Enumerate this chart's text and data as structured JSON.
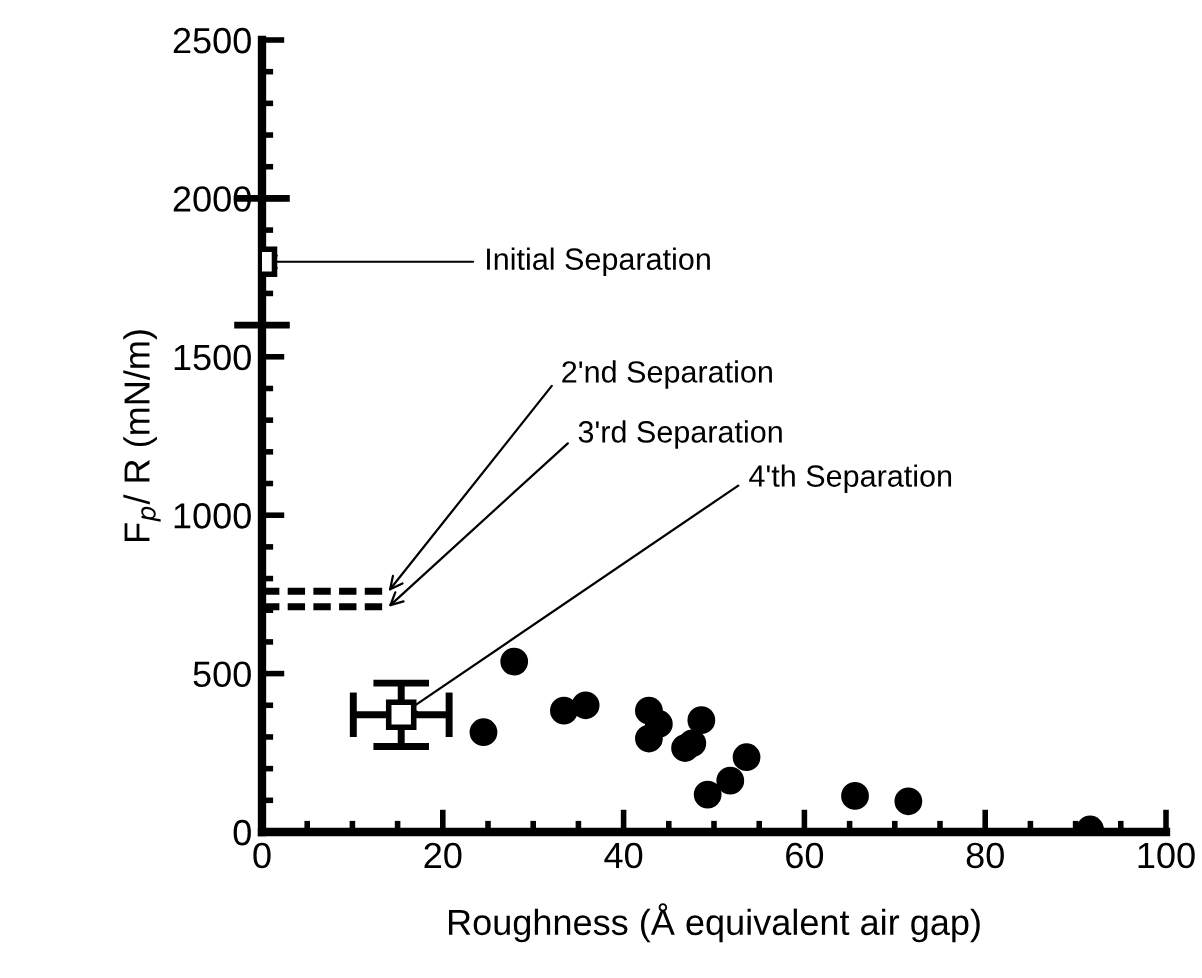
{
  "chart_data": {
    "type": "scatter",
    "xlabel": "Roughness (Å equivalent air gap)",
    "ylabel": "F$_{p}$/ R (mN/m)",
    "xlim": [
      0,
      100
    ],
    "xticks": [
      0,
      20,
      40,
      60,
      80,
      100
    ],
    "ylim": [
      0,
      2500
    ],
    "yticks": [
      0,
      500,
      1000,
      1500,
      2000,
      2500
    ],
    "grid": false,
    "legend": false,
    "series": [
      {
        "marker": "circle",
        "color": "#000000",
        "x": [
          24.5,
          27.9,
          33.4,
          35.8,
          42.8,
          43.9,
          42.8,
          48.6,
          46.8,
          47.6,
          53.6,
          51.8,
          49.3,
          65.6,
          71.5,
          91.6
        ],
        "values": [
          315,
          538,
          383,
          400,
          383,
          341,
          295,
          353,
          265,
          280,
          236,
          162,
          118,
          114,
          97,
          8
        ]
      },
      {
        "marker": "square",
        "color": "#000000",
        "x": [
          0,
          15.4
        ],
        "values": [
          1800,
          370
        ],
        "errors": [
          200,
          100
        ],
        "xerrors": [
          null,
          5.3
        ]
      },
      {
        "type": "line",
        "line_style": "dashed",
        "marker": "none",
        "color": "#000000",
        "x": [
          0,
          14
        ],
        "values": [
          760,
          760
        ]
      },
      {
        "type": "line",
        "line_style": "dashed",
        "marker": "none",
        "color": "#000000",
        "x": [
          0,
          14
        ],
        "values": [
          711,
          711
        ]
      }
    ],
    "annotations": [
      {
        "text": "Initial Separation",
        "x": 0,
        "y": 1800
      },
      {
        "text": "2'nd Separation",
        "x": 14,
        "y": 760
      },
      {
        "text": "3'rd Separation",
        "x": 14,
        "y": 711
      },
      {
        "text": "4'th Separation",
        "x": 15.4,
        "y": 370
      }
    ]
  }
}
